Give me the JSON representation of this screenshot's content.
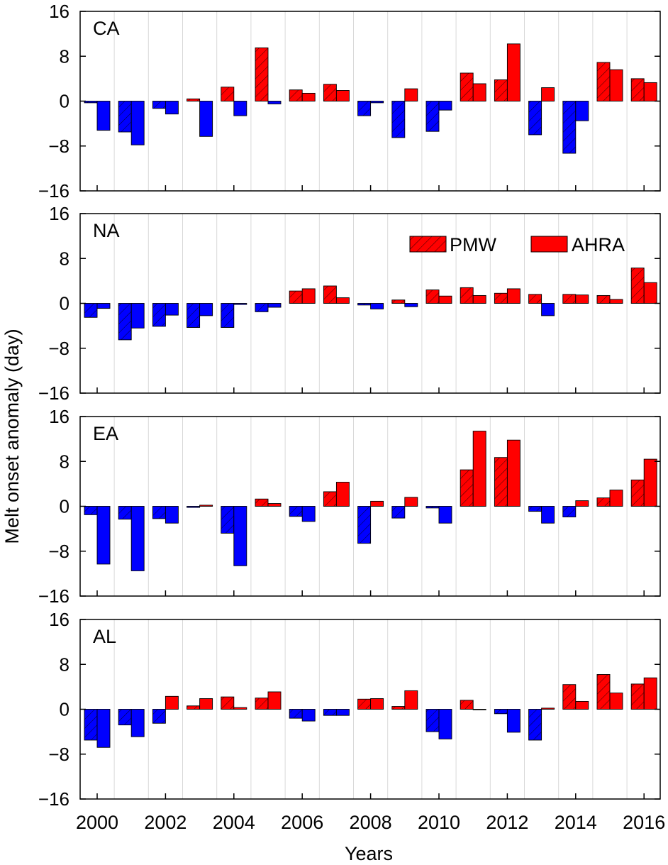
{
  "figure": {
    "ylabel": "Melt onset anomaly (day)",
    "xlabel": "Years"
  },
  "legend": {
    "items": [
      {
        "label": "PMW",
        "pattern": "hatched"
      },
      {
        "label": "AHRA",
        "pattern": "solid"
      }
    ],
    "placement": "inside NA panel, top-right"
  },
  "colors": {
    "positive": "#ff0000",
    "negative": "#0000ff",
    "gridline": "#d9d9d9",
    "axis": "#000000"
  },
  "chart_data": [
    {
      "type": "bar",
      "panel": "CA",
      "categories": [
        2000,
        2001,
        2002,
        2003,
        2004,
        2005,
        2006,
        2007,
        2008,
        2009,
        2010,
        2011,
        2012,
        2013,
        2014,
        2015,
        2016
      ],
      "series": [
        {
          "name": "PMW",
          "values": [
            -0.3,
            -5.5,
            -1.3,
            0.4,
            2.5,
            9.5,
            2.0,
            3.0,
            -2.6,
            -6.5,
            -5.4,
            5.0,
            3.8,
            -6.0,
            -9.3,
            6.9,
            4.0
          ]
        },
        {
          "name": "AHRA",
          "values": [
            -5.2,
            -7.8,
            -2.3,
            -6.3,
            -2.6,
            -0.5,
            1.4,
            1.9,
            -0.3,
            2.2,
            -1.6,
            3.1,
            10.2,
            2.4,
            -3.5,
            5.6,
            3.3
          ]
        }
      ],
      "ylim": [
        -16,
        16
      ],
      "yticks": [
        "16",
        "8",
        "0",
        "−8",
        "−16"
      ],
      "grid": "vertical lines at years"
    },
    {
      "type": "bar",
      "panel": "NA",
      "categories": [
        2000,
        2001,
        2002,
        2003,
        2004,
        2005,
        2006,
        2007,
        2008,
        2009,
        2010,
        2011,
        2012,
        2013,
        2014,
        2015,
        2016
      ],
      "series": [
        {
          "name": "PMW",
          "values": [
            -2.5,
            -6.5,
            -4.1,
            -4.3,
            -4.3,
            -1.5,
            2.2,
            3.1,
            -0.3,
            0.6,
            2.4,
            2.8,
            1.8,
            1.6,
            1.6,
            1.4,
            6.3
          ]
        },
        {
          "name": "AHRA",
          "values": [
            -0.9,
            -4.4,
            -2.1,
            -2.2,
            -0.2,
            -0.7,
            2.6,
            1.0,
            -1.0,
            -0.6,
            1.3,
            1.4,
            2.6,
            -2.2,
            1.5,
            0.7,
            3.7
          ]
        }
      ],
      "ylim": [
        -16,
        16
      ],
      "yticks": [
        "16",
        "8",
        "0",
        "−8",
        "−16"
      ],
      "grid": "vertical lines at years"
    },
    {
      "type": "bar",
      "panel": "EA",
      "categories": [
        2000,
        2001,
        2002,
        2003,
        2004,
        2005,
        2006,
        2007,
        2008,
        2009,
        2010,
        2011,
        2012,
        2013,
        2014,
        2015,
        2016
      ],
      "series": [
        {
          "name": "PMW",
          "values": [
            -1.5,
            -2.3,
            -2.2,
            -0.2,
            -4.8,
            1.3,
            -1.8,
            2.6,
            -6.6,
            -2.1,
            -0.3,
            6.5,
            8.7,
            -0.9,
            -1.9,
            1.5,
            4.7
          ]
        },
        {
          "name": "AHRA",
          "values": [
            -10.3,
            -11.5,
            -3.0,
            0.2,
            -10.6,
            0.5,
            -2.7,
            4.3,
            0.9,
            1.6,
            -3.0,
            13.4,
            11.8,
            -3.0,
            1.0,
            2.9,
            8.4
          ]
        }
      ],
      "ylim": [
        -16,
        16
      ],
      "yticks": [
        "16",
        "8",
        "0",
        "−8",
        "−16"
      ],
      "grid": "vertical lines at years"
    },
    {
      "type": "bar",
      "panel": "AL",
      "categories": [
        2000,
        2001,
        2002,
        2003,
        2004,
        2005,
        2006,
        2007,
        2008,
        2009,
        2010,
        2011,
        2012,
        2013,
        2014,
        2015,
        2016
      ],
      "series": [
        {
          "name": "PMW",
          "values": [
            -5.5,
            -2.8,
            -2.5,
            0.6,
            2.2,
            2.0,
            -1.6,
            -1.1,
            1.8,
            0.5,
            -4.0,
            1.6,
            -0.8,
            -5.5,
            4.4,
            6.2,
            4.5
          ]
        },
        {
          "name": "AHRA",
          "values": [
            -6.8,
            -4.9,
            2.3,
            1.9,
            0.3,
            3.1,
            -2.1,
            -1.1,
            1.9,
            3.3,
            -5.3,
            -0.1,
            -4.1,
            0.2,
            1.4,
            2.9,
            5.6
          ]
        }
      ],
      "ylim": [
        -16,
        16
      ],
      "yticks": [
        "16",
        "8",
        "0",
        "−8",
        "−16"
      ],
      "grid": "vertical lines at years"
    }
  ],
  "xaxis": {
    "tick_years": [
      2000,
      2002,
      2004,
      2006,
      2008,
      2010,
      2012,
      2014,
      2016
    ],
    "tick_labels": [
      "2000",
      "2002",
      "2004",
      "2006",
      "2008",
      "2010",
      "2012",
      "2014",
      "2016"
    ]
  }
}
